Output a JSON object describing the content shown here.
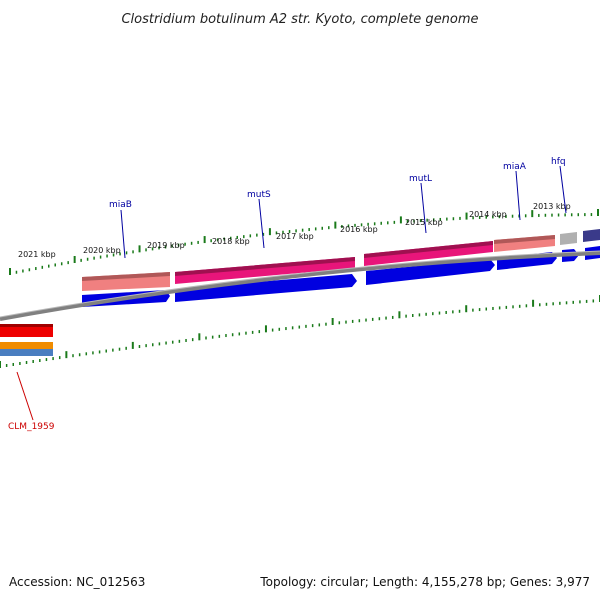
{
  "title": "Clostridium botulinum A2 str. Kyoto, complete genome",
  "footer": {
    "accession": "Accession: NC_012563",
    "summary": "Topology: circular; Length: 4,155,278 bp; Genes: 3,977"
  },
  "tick_labels": [
    "2021 kbp",
    "2020 kbp",
    "2019 kbp",
    "2018 kbp",
    "2017 kbp",
    "2016 kbp",
    "2015 kbp",
    "2014 kbp",
    "2013 kbp"
  ],
  "gene_labels": [
    "miaB",
    "mutS",
    "mutL",
    "miaA",
    "hfq",
    "CLM_1959"
  ],
  "colors": {
    "backbone": "#808080",
    "tick": "#1a7a1a",
    "cds_forward": "#0000e0",
    "gene_mutS": "#e8157a",
    "gene_miaB": "#f08080",
    "gene_hfq": "#b0b0b0",
    "gene_dark": "#3a3a8a",
    "gene_red": "#ee0000",
    "gene_orange": "#f08c00",
    "gene_steel": "#4a7ec0",
    "label_blue": "#0000a0",
    "label_red": "#cc0000"
  }
}
